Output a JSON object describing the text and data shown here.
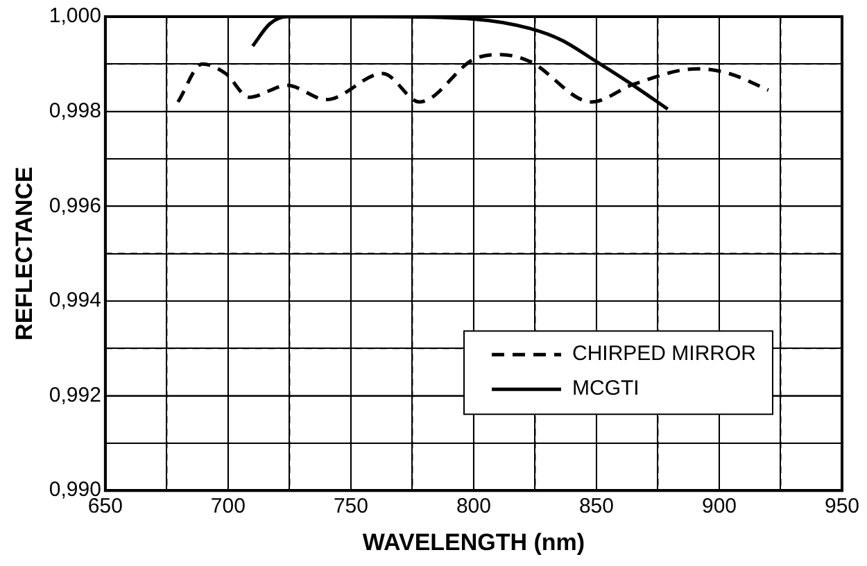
{
  "chart_data": {
    "type": "line",
    "xlabel": "WAVELENGTH (nm)",
    "ylabel": "REFLECTANCE",
    "xlim": [
      650,
      950
    ],
    "ylim": [
      0.99,
      1.0
    ],
    "xticks": [
      650,
      {
        "value": 675,
        "label": null
      },
      700,
      {
        "value": 725,
        "label": null
      },
      750,
      {
        "value": 775,
        "label": null
      },
      800,
      {
        "value": 825,
        "label": null
      },
      850,
      {
        "value": 875,
        "label": null
      },
      900,
      {
        "value": 925,
        "label": null
      },
      950
    ],
    "yticks": [
      {
        "value": 0.99,
        "label": "0,990"
      },
      {
        "value": 0.991,
        "label": null
      },
      {
        "value": 0.992,
        "label": "0,992"
      },
      {
        "value": 0.993,
        "label": null
      },
      {
        "value": 0.994,
        "label": "0,994"
      },
      {
        "value": 0.995,
        "label": null
      },
      {
        "value": 0.996,
        "label": "0,996"
      },
      {
        "value": 0.997,
        "label": null
      },
      {
        "value": 0.998,
        "label": "0,998"
      },
      {
        "value": 0.999,
        "label": null
      },
      {
        "value": 1.0,
        "label": "1,000"
      }
    ],
    "grid": true,
    "legend": "bottom right",
    "marker": "none",
    "series": [
      {
        "name": "CHIRPED MIRROR",
        "color": "#000000",
        "line_style": "dashed",
        "x": [
          679.6,
          689.5,
          699,
          708.6,
          724,
          740,
          763,
          778,
          800,
          811,
          823,
          848,
          865,
          891,
          904,
          920
        ],
        "values": [
          0.9982,
          0.999,
          0.9988,
          0.9983,
          0.99855,
          0.99825,
          0.9988,
          0.9982,
          0.9991,
          0.9992,
          0.99905,
          0.9982,
          0.99857,
          0.9989,
          0.9988,
          0.99845
        ]
      },
      {
        "name": "MCGTI",
        "color": "#000000",
        "line_style": "solid",
        "x": [
          710,
          717,
          724,
          760,
          800,
          823,
          836,
          850,
          865,
          879
        ],
        "values": [
          0.99938,
          0.99985,
          1.0,
          1.0,
          0.99995,
          0.99975,
          0.9995,
          0.99905,
          0.99855,
          0.99805
        ]
      }
    ]
  }
}
